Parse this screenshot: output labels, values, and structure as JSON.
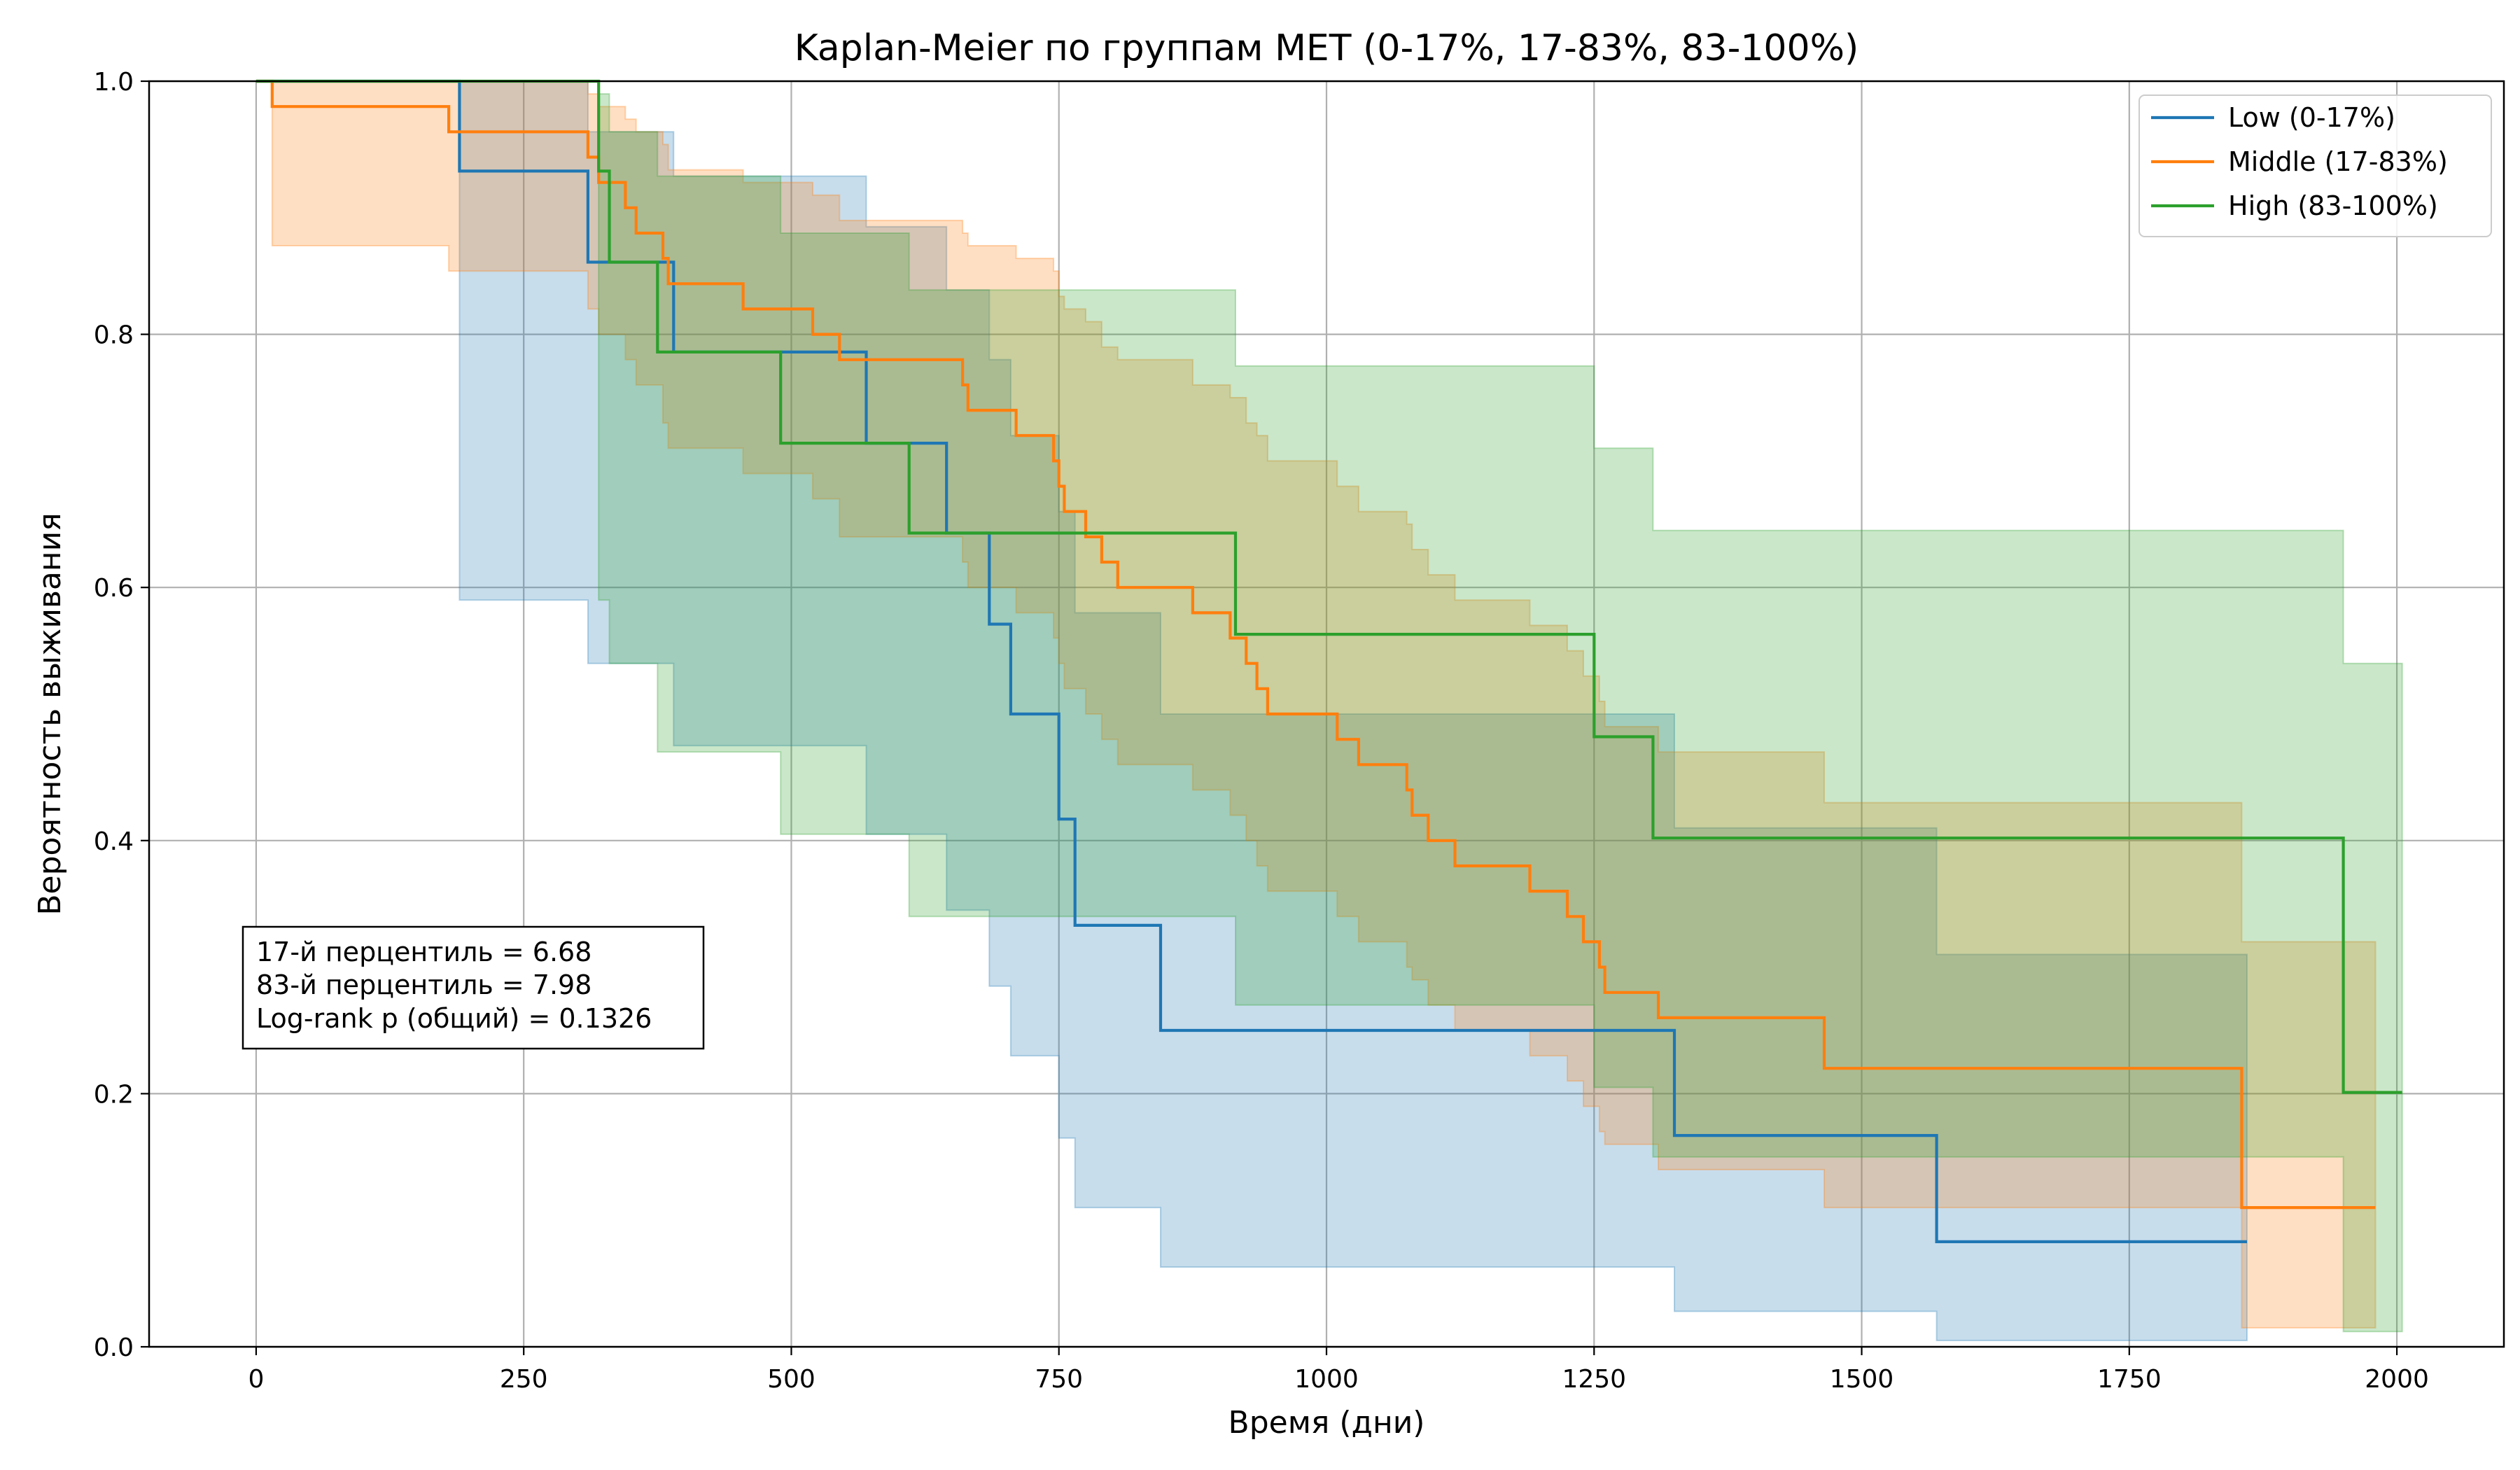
{
  "chart_data": {
    "type": "line",
    "subtype": "kaplan-meier-step",
    "title": "Kaplan-Meier по группам MET (0-17%, 17-83%, 83-100%)",
    "xlabel": "Время (дни)",
    "ylabel": "Вероятность выживания",
    "xlim": [
      -100,
      2100
    ],
    "ylim": [
      0,
      1.0
    ],
    "xticks": [
      "0",
      "250",
      "500",
      "750",
      "1000",
      "1250",
      "1500",
      "1750",
      "2000"
    ],
    "yticks": [
      "0.0",
      "0.2",
      "0.4",
      "0.6",
      "0.8",
      "1.0"
    ],
    "grid": true,
    "legend_position": "top-right",
    "annotation": {
      "lines": [
        "17-й перцентиль = 6.68",
        "83-й перцентиль = 7.98",
        "Log-rank p (общий) = 0.1326"
      ]
    },
    "series": [
      {
        "name": "Low (0-17%)",
        "color": "#1f77b4",
        "steps": [
          [
            0,
            1.0
          ],
          [
            190,
            0.929
          ],
          [
            310,
            0.857
          ],
          [
            390,
            0.786
          ],
          [
            570,
            0.714
          ],
          [
            645,
            0.643
          ],
          [
            685,
            0.571
          ],
          [
            705,
            0.5
          ],
          [
            750,
            0.417
          ],
          [
            765,
            0.333
          ],
          [
            845,
            0.25
          ],
          [
            1325,
            0.167
          ],
          [
            1570,
            0.083
          ],
          [
            1860,
            0.083
          ]
        ],
        "ci": [
          [
            0,
            1.0,
            1.0
          ],
          [
            190,
            0.59,
            1.0
          ],
          [
            310,
            0.54,
            0.96
          ],
          [
            390,
            0.475,
            0.925
          ],
          [
            570,
            0.405,
            0.885
          ],
          [
            645,
            0.345,
            0.835
          ],
          [
            685,
            0.285,
            0.78
          ],
          [
            705,
            0.23,
            0.72
          ],
          [
            750,
            0.165,
            0.66
          ],
          [
            765,
            0.11,
            0.58
          ],
          [
            845,
            0.063,
            0.5
          ],
          [
            1325,
            0.028,
            0.41
          ],
          [
            1570,
            0.005,
            0.31
          ],
          [
            1860,
            0.005,
            0.31
          ]
        ]
      },
      {
        "name": "Middle (17-83%)",
        "color": "#ff7f0e",
        "steps": [
          [
            0,
            1.0
          ],
          [
            15,
            0.98
          ],
          [
            180,
            0.96
          ],
          [
            310,
            0.94
          ],
          [
            320,
            0.92
          ],
          [
            345,
            0.9
          ],
          [
            355,
            0.88
          ],
          [
            380,
            0.86
          ],
          [
            385,
            0.84
          ],
          [
            455,
            0.82
          ],
          [
            520,
            0.8
          ],
          [
            545,
            0.78
          ],
          [
            660,
            0.76
          ],
          [
            665,
            0.74
          ],
          [
            710,
            0.72
          ],
          [
            745,
            0.7
          ],
          [
            750,
            0.68
          ],
          [
            755,
            0.66
          ],
          [
            775,
            0.64
          ],
          [
            790,
            0.62
          ],
          [
            805,
            0.6
          ],
          [
            875,
            0.58
          ],
          [
            910,
            0.56
          ],
          [
            925,
            0.54
          ],
          [
            935,
            0.52
          ],
          [
            945,
            0.5
          ],
          [
            1010,
            0.48
          ],
          [
            1030,
            0.46
          ],
          [
            1075,
            0.44
          ],
          [
            1080,
            0.42
          ],
          [
            1095,
            0.4
          ],
          [
            1120,
            0.38
          ],
          [
            1190,
            0.36
          ],
          [
            1225,
            0.34
          ],
          [
            1240,
            0.32
          ],
          [
            1255,
            0.3
          ],
          [
            1260,
            0.28
          ],
          [
            1310,
            0.26
          ],
          [
            1465,
            0.22
          ],
          [
            1855,
            0.11
          ],
          [
            1980,
            0.11
          ]
        ],
        "ci": [
          [
            0,
            1.0,
            1.0
          ],
          [
            15,
            0.87,
            1.0
          ],
          [
            180,
            0.85,
            1.0
          ],
          [
            310,
            0.82,
            0.99
          ],
          [
            320,
            0.8,
            0.98
          ],
          [
            345,
            0.78,
            0.97
          ],
          [
            355,
            0.76,
            0.96
          ],
          [
            380,
            0.73,
            0.95
          ],
          [
            385,
            0.71,
            0.93
          ],
          [
            455,
            0.69,
            0.92
          ],
          [
            520,
            0.67,
            0.91
          ],
          [
            545,
            0.64,
            0.89
          ],
          [
            660,
            0.62,
            0.88
          ],
          [
            665,
            0.6,
            0.87
          ],
          [
            710,
            0.58,
            0.86
          ],
          [
            745,
            0.56,
            0.85
          ],
          [
            750,
            0.54,
            0.83
          ],
          [
            755,
            0.52,
            0.82
          ],
          [
            775,
            0.5,
            0.81
          ],
          [
            790,
            0.48,
            0.79
          ],
          [
            805,
            0.46,
            0.78
          ],
          [
            875,
            0.44,
            0.76
          ],
          [
            910,
            0.42,
            0.75
          ],
          [
            925,
            0.4,
            0.73
          ],
          [
            935,
            0.38,
            0.72
          ],
          [
            945,
            0.36,
            0.7
          ],
          [
            1010,
            0.34,
            0.68
          ],
          [
            1030,
            0.32,
            0.66
          ],
          [
            1075,
            0.3,
            0.65
          ],
          [
            1080,
            0.29,
            0.63
          ],
          [
            1095,
            0.27,
            0.61
          ],
          [
            1120,
            0.25,
            0.59
          ],
          [
            1190,
            0.23,
            0.57
          ],
          [
            1225,
            0.21,
            0.55
          ],
          [
            1240,
            0.19,
            0.53
          ],
          [
            1255,
            0.17,
            0.51
          ],
          [
            1260,
            0.16,
            0.49
          ],
          [
            1310,
            0.14,
            0.47
          ],
          [
            1465,
            0.11,
            0.43
          ],
          [
            1855,
            0.015,
            0.32
          ],
          [
            1980,
            0.015,
            0.32
          ]
        ]
      },
      {
        "name": "High (83-100%)",
        "color": "#2ca02c",
        "steps": [
          [
            0,
            1.0
          ],
          [
            320,
            0.929
          ],
          [
            330,
            0.857
          ],
          [
            375,
            0.786
          ],
          [
            490,
            0.714
          ],
          [
            610,
            0.643
          ],
          [
            915,
            0.563
          ],
          [
            1250,
            0.482
          ],
          [
            1305,
            0.402
          ],
          [
            1950,
            0.201
          ],
          [
            2005,
            0.201
          ]
        ],
        "ci": [
          [
            0,
            1.0,
            1.0
          ],
          [
            320,
            0.59,
            0.99
          ],
          [
            330,
            0.54,
            0.96
          ],
          [
            375,
            0.47,
            0.925
          ],
          [
            490,
            0.405,
            0.88
          ],
          [
            610,
            0.34,
            0.835
          ],
          [
            915,
            0.27,
            0.775
          ],
          [
            1250,
            0.205,
            0.71
          ],
          [
            1305,
            0.15,
            0.645
          ],
          [
            1950,
            0.012,
            0.54
          ],
          [
            2005,
            0.012,
            0.54
          ]
        ]
      }
    ]
  }
}
